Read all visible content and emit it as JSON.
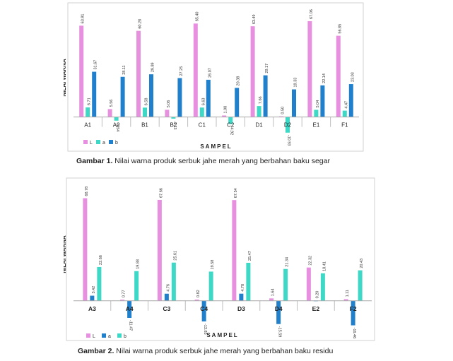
{
  "chart_data": [
    {
      "type": "bar",
      "categories": [
        "A1",
        "A2",
        "B1",
        "B2",
        "C1",
        "C2",
        "D1",
        "D2",
        "E1",
        "F1"
      ],
      "series": [
        {
          "name": "L",
          "color": "#e890e0",
          "values": [
            63.91,
            5.56,
            60.28,
            5.06,
            65.4,
            1.08,
            63.49,
            0.5,
            67.06,
            56.85
          ],
          "labels": [
            "63.91",
            "5.56",
            "60.28",
            "5.06",
            "65.40",
            "1.08",
            "63.49",
            "0.50",
            "67.06",
            "56.85"
          ]
        },
        {
          "name": "a",
          "color": "#3dd9c6",
          "values": [
            6.71,
            -2.54,
            6.58,
            -1.13,
            6.63,
            -4.92,
            7.66,
            -10.93,
            5.04,
            4.47
          ],
          "labels": [
            "6.71",
            "-2.54",
            "6.58",
            "-1.13",
            "6.63",
            "-4.92",
            "7.66",
            "-10.93",
            "5.04",
            "4.47"
          ]
        },
        {
          "name": "b",
          "color": "#2080cc",
          "values": [
            31.67,
            28.11,
            29.89,
            27.25,
            26.07,
            20.38,
            29.17,
            19.33,
            22.14,
            23.03
          ],
          "labels": [
            "31.67",
            "28.11",
            "29.89",
            "27.25",
            "26.07",
            "20.38",
            "29.17",
            "19.33",
            "22.14",
            "23.03"
          ]
        }
      ],
      "ylabel": "NILAI WARNA",
      "xlabel": "SAMPEL",
      "ylim": [
        -15,
        70
      ],
      "legend": "bottom-left"
    },
    {
      "type": "bar",
      "categories": [
        "A3",
        "A4",
        "C3",
        "C4",
        "D3",
        "D4",
        "E2",
        "F2"
      ],
      "series": [
        {
          "name": "L",
          "color": "#e890e0",
          "values": [
            68.78,
            0.77,
            67.66,
            0.82,
            67.54,
            1.64,
            22.32,
            1.11
          ],
          "labels": [
            "68.78",
            "0.77",
            "67.66",
            "0.82",
            "67.54",
            "1.64",
            "22.32",
            "1.11"
          ]
        },
        {
          "name": "a",
          "color": "#2080cc",
          "values": [
            3.42,
            -11.47,
            4.76,
            -13.83,
            4.78,
            -15.59,
            0.2,
            -16.46
          ],
          "labels": [
            "3.42",
            "-11.47",
            "4.76",
            "-13.83",
            "4.78",
            "-15.59",
            "0.20",
            "-16.46"
          ]
        },
        {
          "name": "b",
          "color": "#3dd9c6",
          "values": [
            22.66,
            19.88,
            25.61,
            19.58,
            25.47,
            21.34,
            18.41,
            20.43
          ],
          "labels": [
            "22.66",
            "19.88",
            "25.61",
            "19.58",
            "25.47",
            "21.34",
            "18.41",
            "20.43"
          ]
        }
      ],
      "ylabel": "NILAI WARNA",
      "xlabel": "SAMPEL",
      "ylim": [
        -20,
        70
      ],
      "legend": "bottom-left"
    }
  ],
  "captions": [
    {
      "label": "Gambar 1.",
      "text": " Nilai warna produk serbuk jahe merah yang berbahan baku segar"
    },
    {
      "label": "Gambar 2.",
      "text": " Nilai warna produk serbuk jahe merah yang berbahan baku residu"
    }
  ]
}
